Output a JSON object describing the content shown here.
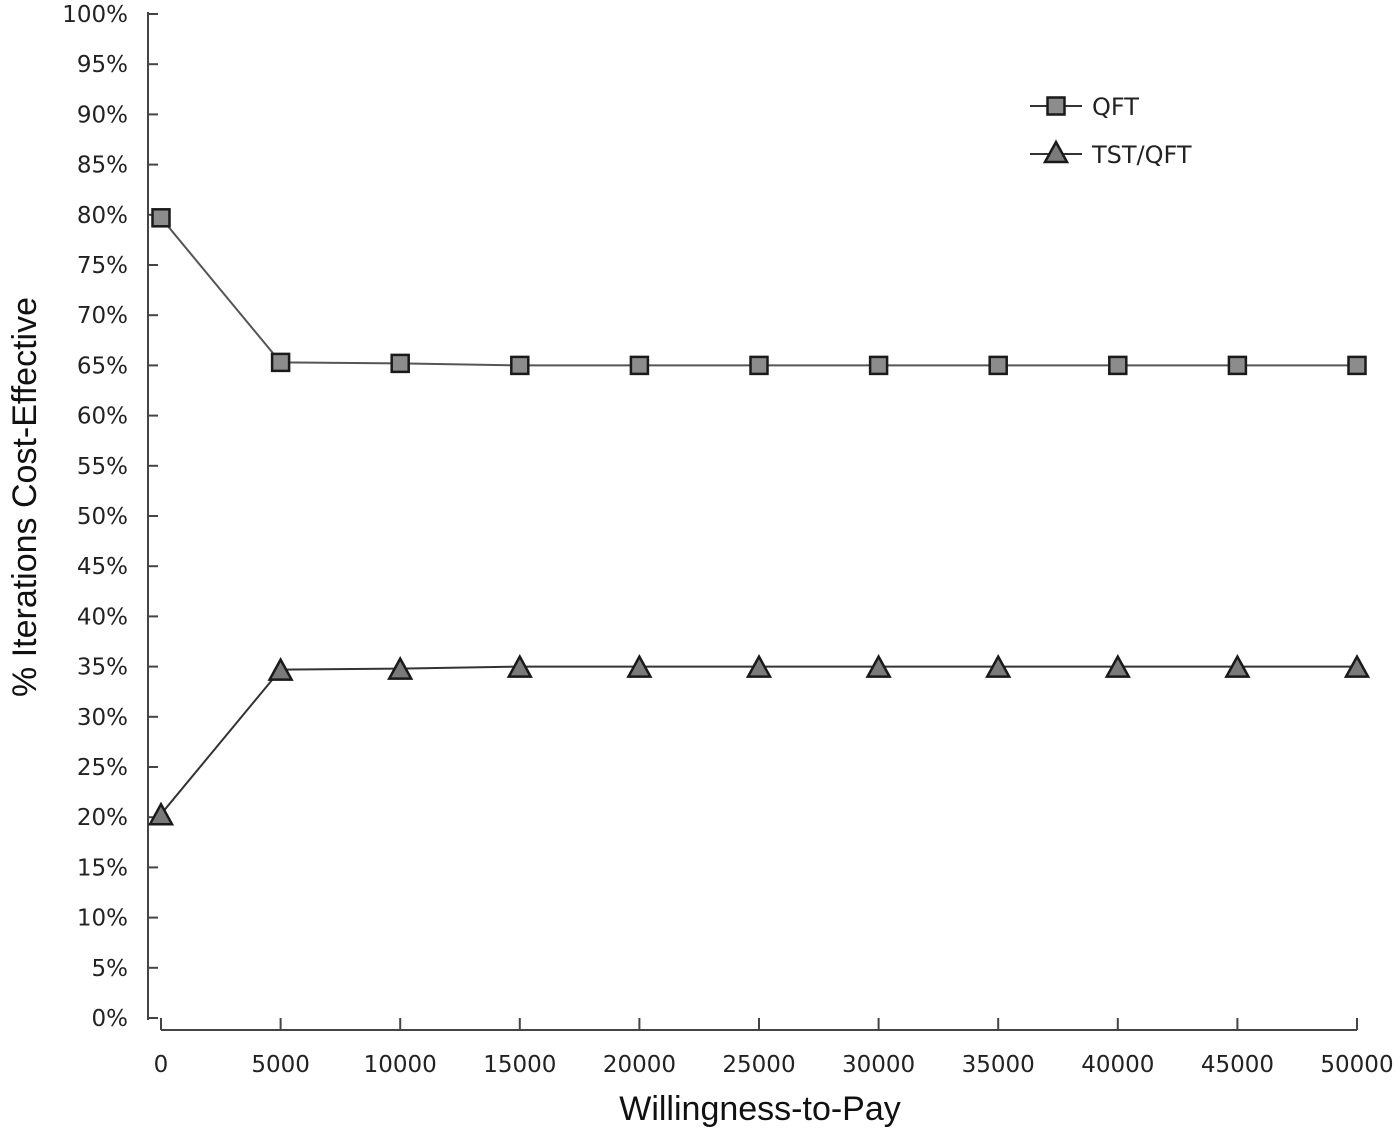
{
  "chart_data": {
    "type": "line",
    "title": "",
    "xlabel": "Willingness-to-Pay",
    "ylabel": "% Iterations Cost-Effective",
    "x": [
      0,
      5000,
      10000,
      15000,
      20000,
      25000,
      30000,
      35000,
      40000,
      45000,
      50000
    ],
    "x_tick_labels": [
      "0",
      "5000",
      "10000",
      "15000",
      "20000",
      "25000",
      "30000",
      "35000",
      "40000",
      "45000",
      "50000"
    ],
    "xlim": [
      0,
      50000
    ],
    "ylim": [
      0,
      100
    ],
    "y_ticks": [
      0,
      5,
      10,
      15,
      20,
      25,
      30,
      35,
      40,
      45,
      50,
      55,
      60,
      65,
      70,
      75,
      80,
      85,
      90,
      95,
      100
    ],
    "y_tick_labels": [
      "0%",
      "5%",
      "10%",
      "15%",
      "20%",
      "25%",
      "30%",
      "35%",
      "40%",
      "45%",
      "50%",
      "55%",
      "60%",
      "65%",
      "70%",
      "75%",
      "80%",
      "85%",
      "90%",
      "95%",
      "100%"
    ],
    "grid": false,
    "legend_position": "top-right",
    "series": [
      {
        "name": "QFT",
        "marker": "square",
        "color": "#8c8c8c",
        "values": [
          79.7,
          65.3,
          65.2,
          65.0,
          65.0,
          65.0,
          65.0,
          65.0,
          65.0,
          65.0,
          65.0
        ]
      },
      {
        "name": "TST/QFT",
        "marker": "triangle",
        "color": "#7a7a7a",
        "values": [
          20.3,
          34.7,
          34.8,
          35.0,
          35.0,
          35.0,
          35.0,
          35.0,
          35.0,
          35.0,
          35.0
        ]
      }
    ]
  }
}
